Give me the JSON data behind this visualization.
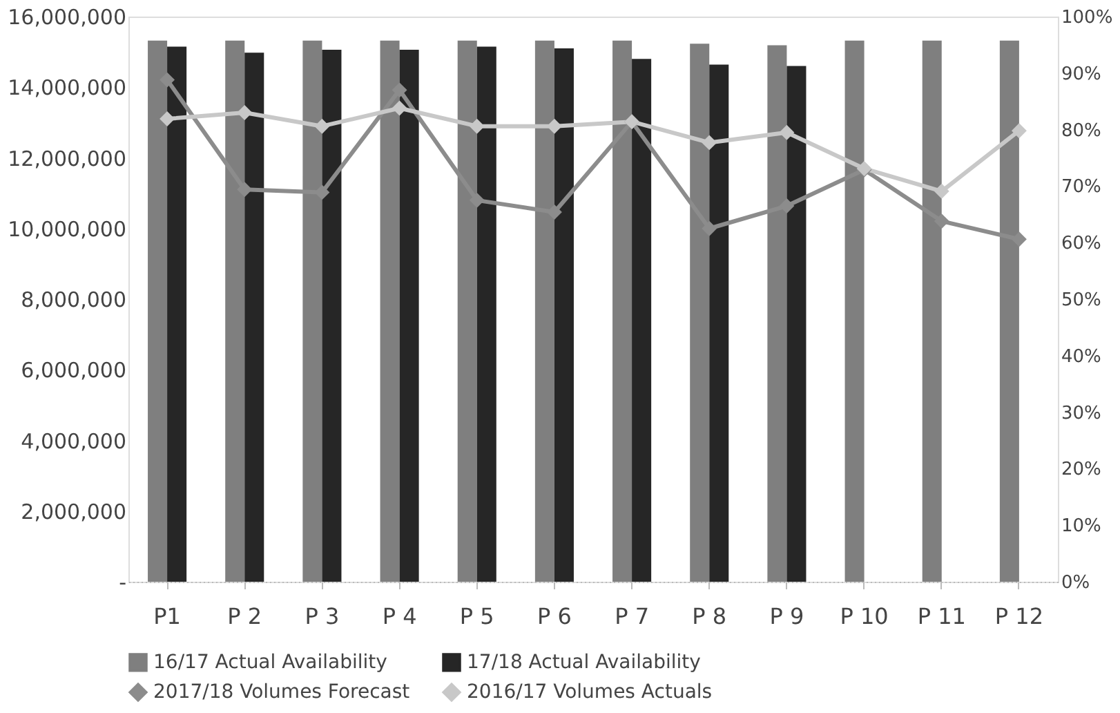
{
  "chart_data": {
    "type": "bar",
    "categories": [
      "P1",
      "P 2",
      "P 3",
      "P 4",
      "P 5",
      "P 6",
      "P 7",
      "P 8",
      "P 9",
      "P 10",
      "P 11",
      "P 12"
    ],
    "series": [
      {
        "name": "16/17 Actual Availability",
        "color": "#7f7f7f",
        "values": [
          15320000,
          15320000,
          15320000,
          15320000,
          15320000,
          15320000,
          15320000,
          15230000,
          15190000,
          15320000,
          15320000,
          15320000
        ]
      },
      {
        "name": "17/18 Actual Availability",
        "color": "#262626",
        "values": [
          15150000,
          14980000,
          15060000,
          15060000,
          15150000,
          15100000,
          14800000,
          14640000,
          14600000,
          null,
          null,
          null
        ]
      },
      {
        "name": "2017/18 Volumes Forecast",
        "type": "line",
        "axis": "y2",
        "color": "#8c8c8c",
        "values": [
          88.8,
          69.4,
          68.9,
          87,
          67.5,
          65.4,
          81.4,
          62.5,
          66.5,
          72.9,
          63.8,
          60.6
        ]
      },
      {
        "name": "2016/17 Volumes Actuals",
        "type": "line",
        "axis": "y2",
        "color": "#c8c8c8",
        "values": [
          81.9,
          83,
          80.6,
          83.8,
          80.6,
          80.6,
          81.4,
          77.7,
          79.5,
          73.1,
          69.1,
          79.8
        ]
      }
    ],
    "ylim": [
      0,
      16000000
    ],
    "yticks": [
      {
        "value": 0,
        "label": "-"
      },
      {
        "value": 2000000,
        "label": "2,000,000"
      },
      {
        "value": 4000000,
        "label": "4,000,000"
      },
      {
        "value": 6000000,
        "label": "6,000,000"
      },
      {
        "value": 8000000,
        "label": "8,000,000"
      },
      {
        "value": 10000000,
        "label": "10,000,000"
      },
      {
        "value": 12000000,
        "label": "12,000,000"
      },
      {
        "value": 14000000,
        "label": "14,000,000"
      },
      {
        "value": 16000000,
        "label": "16,000,000"
      }
    ],
    "y2lim": [
      0,
      100
    ],
    "y2ticks": [
      {
        "value": 0,
        "label": "0%"
      },
      {
        "value": 10,
        "label": "10%"
      },
      {
        "value": 20,
        "label": "20%"
      },
      {
        "value": 30,
        "label": "30%"
      },
      {
        "value": 40,
        "label": "40%"
      },
      {
        "value": 50,
        "label": "50%"
      },
      {
        "value": 60,
        "label": "60%"
      },
      {
        "value": 70,
        "label": "70%"
      },
      {
        "value": 80,
        "label": "80%"
      },
      {
        "value": 90,
        "label": "90%"
      },
      {
        "value": 100,
        "label": "100%"
      }
    ],
    "grid": false,
    "legend": "bottom",
    "marker": "diamond"
  }
}
